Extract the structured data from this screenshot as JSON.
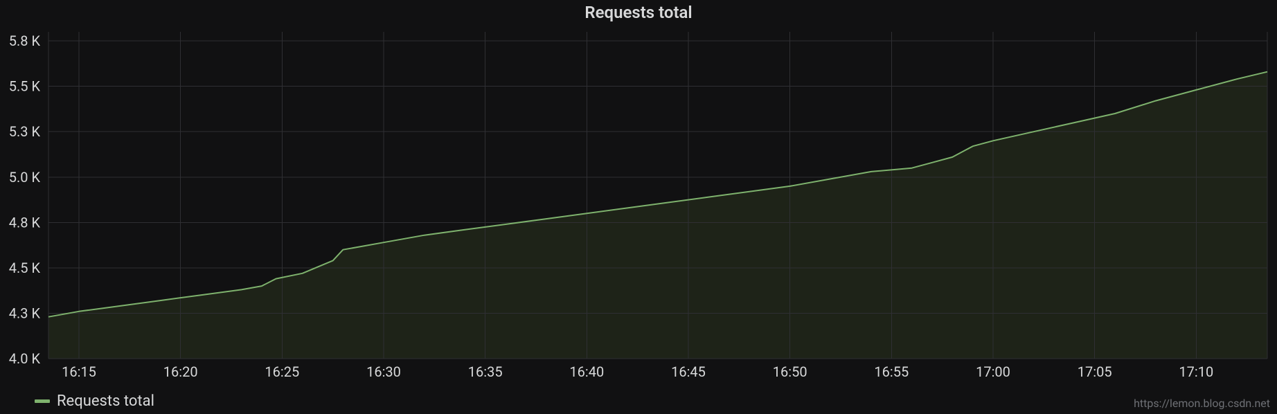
{
  "watermark": "https://lemon.blog.csdn.net",
  "chart": {
    "type": "line-area",
    "title": "Requests total",
    "background_color": "#111112",
    "grid_color": "#2f2f33",
    "axis_text_color": "#d8d9da",
    "title_fontsize": 24,
    "axis_fontsize": 20,
    "legend_fontsize": 22,
    "line_width": 2,
    "x": {
      "min": 973.5,
      "max": 1033.5,
      "ticks": [
        975,
        980,
        985,
        990,
        995,
        1000,
        1005,
        1010,
        1015,
        1020,
        1025,
        1030
      ],
      "tick_labels": [
        "16:15",
        "16:20",
        "16:25",
        "16:30",
        "16:35",
        "16:40",
        "16:45",
        "16:50",
        "16:55",
        "17:00",
        "17:05",
        "17:10"
      ]
    },
    "y": {
      "min": 4000,
      "max": 5800,
      "ticks": [
        4000,
        4250,
        4500,
        4750,
        5000,
        5250,
        5500,
        5750
      ],
      "tick_labels": [
        "4.0 K",
        "4.3 K",
        "4.5 K",
        "4.8 K",
        "5.0 K",
        "5.3 K",
        "5.5 K",
        "5.8 K"
      ]
    },
    "series": [
      {
        "label": "Requests total",
        "color": "#7eb26d",
        "area_fill": "#1e2318",
        "area_opacity": 1.0,
        "points": [
          [
            973.5,
            4230
          ],
          [
            975,
            4260
          ],
          [
            977,
            4290
          ],
          [
            979,
            4320
          ],
          [
            981,
            4350
          ],
          [
            983,
            4380
          ],
          [
            984,
            4400
          ],
          [
            984.7,
            4440
          ],
          [
            986,
            4470
          ],
          [
            987.5,
            4540
          ],
          [
            988,
            4600
          ],
          [
            990,
            4640
          ],
          [
            992,
            4680
          ],
          [
            994,
            4710
          ],
          [
            996,
            4740
          ],
          [
            998,
            4770
          ],
          [
            1000,
            4800
          ],
          [
            1002,
            4830
          ],
          [
            1004,
            4860
          ],
          [
            1006,
            4890
          ],
          [
            1008,
            4920
          ],
          [
            1010,
            4950
          ],
          [
            1012,
            4990
          ],
          [
            1014,
            5030
          ],
          [
            1016,
            5050
          ],
          [
            1017,
            5080
          ],
          [
            1018,
            5110
          ],
          [
            1019,
            5170
          ],
          [
            1020,
            5200
          ],
          [
            1022,
            5250
          ],
          [
            1024,
            5300
          ],
          [
            1026,
            5350
          ],
          [
            1028,
            5420
          ],
          [
            1030,
            5480
          ],
          [
            1032,
            5540
          ],
          [
            1033.5,
            5580
          ]
        ]
      }
    ]
  }
}
